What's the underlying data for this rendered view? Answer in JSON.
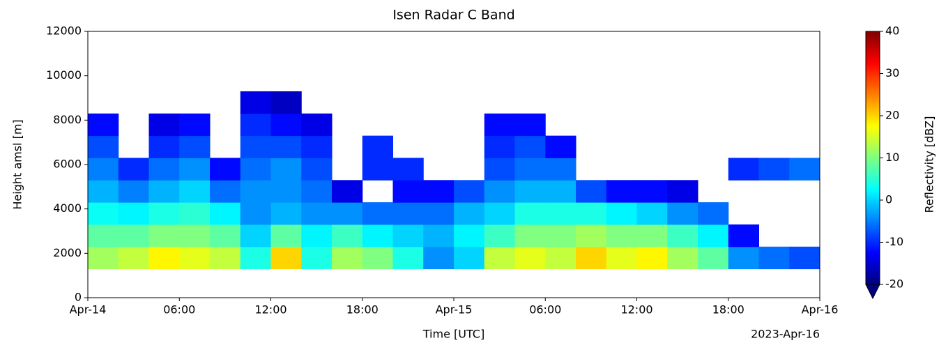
{
  "chart_data": {
    "type": "heatmap",
    "title": "Isen Radar C Band",
    "x_label": "Time [UTC]",
    "y_label": "Height amsl [m]",
    "annotation": "2023-Apr-16",
    "x_edges": [
      0,
      2,
      4,
      6,
      8,
      10,
      12,
      14,
      16,
      18,
      20,
      22,
      24,
      26,
      28,
      30,
      32,
      34,
      36,
      38,
      40,
      42,
      44,
      46,
      48
    ],
    "y_edges": [
      1300,
      2300,
      3300,
      4300,
      5300,
      6300,
      7300,
      8300,
      9300
    ],
    "z": [
      [
        12,
        14,
        18,
        16,
        14,
        4,
        20,
        4,
        12,
        10,
        4,
        -4,
        0,
        14,
        16,
        14,
        20,
        16,
        18,
        12,
        8,
        -4,
        -6,
        -8
      ],
      [
        8,
        8,
        10,
        10,
        8,
        0,
        8,
        2,
        6,
        2,
        0,
        -2,
        2,
        6,
        10,
        10,
        12,
        10,
        10,
        6,
        2,
        -12,
        null,
        null
      ],
      [
        3,
        2,
        4,
        5,
        2,
        -4,
        -2,
        -4,
        -4,
        -6,
        -6,
        -6,
        -2,
        0,
        4,
        4,
        4,
        2,
        0,
        -4,
        -6,
        null,
        null,
        null
      ],
      [
        -2,
        -5,
        -2,
        0,
        -6,
        -4,
        -4,
        -6,
        -14,
        null,
        -12,
        -12,
        -8,
        -4,
        -2,
        -2,
        -8,
        -12,
        -12,
        -14,
        null,
        null,
        null,
        null
      ],
      [
        -5,
        -10,
        -6,
        -4,
        -12,
        -6,
        -4,
        -8,
        null,
        -10,
        -10,
        null,
        null,
        -8,
        -6,
        -6,
        null,
        null,
        null,
        null,
        null,
        -10,
        -8,
        -6
      ],
      [
        -8,
        null,
        -10,
        -8,
        null,
        -8,
        -8,
        -10,
        null,
        -10,
        null,
        null,
        null,
        -10,
        -8,
        -12,
        null,
        null,
        null,
        null,
        null,
        null,
        null,
        null
      ],
      [
        -12,
        null,
        -14,
        -12,
        null,
        -10,
        -12,
        -14,
        null,
        null,
        null,
        null,
        null,
        -12,
        -12,
        null,
        null,
        null,
        null,
        null,
        null,
        null,
        null,
        null
      ],
      [
        null,
        null,
        null,
        null,
        null,
        -14,
        -16,
        null,
        null,
        null,
        null,
        null,
        null,
        null,
        null,
        null,
        null,
        null,
        null,
        null,
        null,
        null,
        null,
        null
      ]
    ],
    "xlim": [
      0,
      48
    ],
    "xticks": [
      {
        "value": 0,
        "label": "Apr-14"
      },
      {
        "value": 6,
        "label": "06:00"
      },
      {
        "value": 12,
        "label": "12:00"
      },
      {
        "value": 18,
        "label": "18:00"
      },
      {
        "value": 24,
        "label": "Apr-15"
      },
      {
        "value": 30,
        "label": "06:00"
      },
      {
        "value": 36,
        "label": "12:00"
      },
      {
        "value": 42,
        "label": "18:00"
      },
      {
        "value": 48,
        "label": "Apr-16"
      }
    ],
    "ylim": [
      0,
      12000
    ],
    "yticks": [
      0,
      2000,
      4000,
      6000,
      8000,
      10000,
      12000
    ],
    "colormap": "jet",
    "clim": [
      -20,
      40
    ],
    "cticks": [
      -20,
      -10,
      0,
      10,
      20,
      30,
      40
    ],
    "colorbar_label": "Reflectivity [dBZ]"
  }
}
